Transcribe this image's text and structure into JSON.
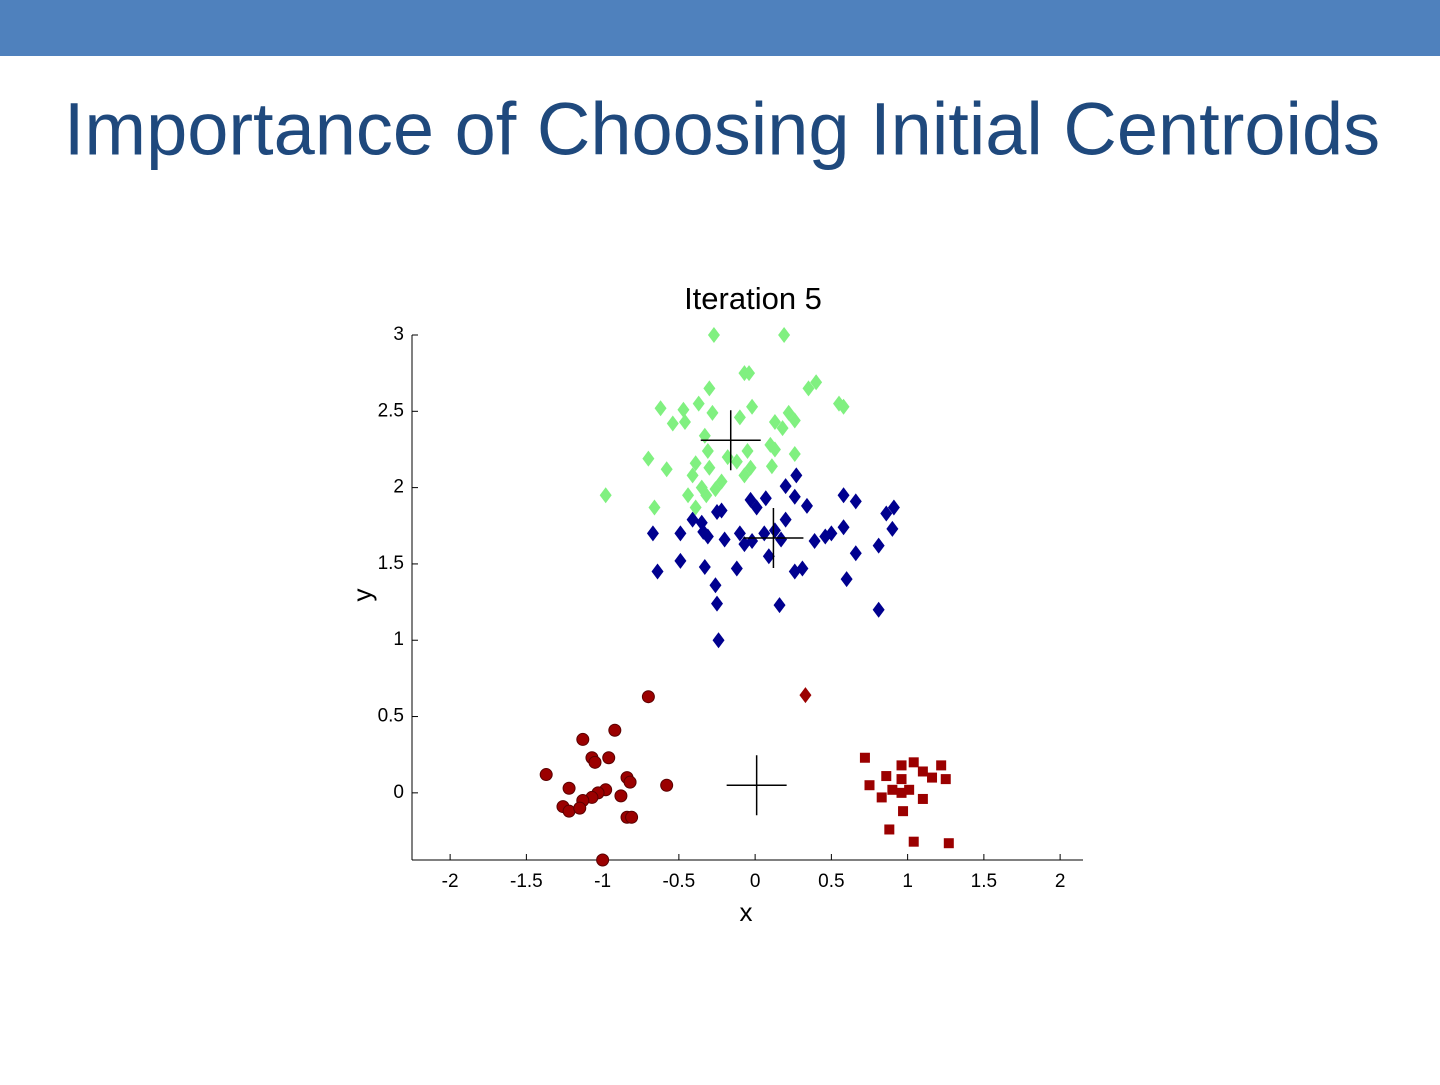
{
  "slide": {
    "title": "Importance of Choosing Initial Centroids"
  },
  "chart_data": {
    "type": "scatter",
    "title": "Iteration 5",
    "x_label": "x",
    "y_label": "y",
    "xlim": [
      -2.25,
      2.15
    ],
    "ylim": [
      -0.44,
      3.0
    ],
    "xticks": [
      -2,
      -1.5,
      -1,
      -0.5,
      0,
      0.5,
      1,
      1.5,
      2
    ],
    "yticks": [
      0,
      0.5,
      1,
      1.5,
      2,
      2.5,
      3
    ],
    "grid": false,
    "series": [
      {
        "color": "#80f080",
        "marker": "diamond",
        "x": [
          -0.27,
          0.19,
          -0.3,
          -0.07,
          -0.04,
          0.4,
          0.35,
          -0.62,
          -0.47,
          -0.37,
          -0.28,
          -0.1,
          -0.02,
          0.22,
          0.26,
          0.13,
          0.18,
          0.55,
          0.58,
          -0.54,
          -0.46,
          -0.33,
          -0.31,
          -0.05,
          0.1,
          0.13,
          0.26,
          -0.7,
          -0.58,
          -0.39,
          -0.3,
          -0.18,
          -0.12,
          -0.03,
          -0.07,
          0.11,
          -0.41,
          -0.35,
          -0.22,
          -0.26,
          -0.44,
          -0.32,
          -0.98,
          -0.66,
          -0.39
        ],
        "y": [
          3.0,
          3.0,
          2.65,
          2.75,
          2.75,
          2.69,
          2.65,
          2.52,
          2.51,
          2.55,
          2.49,
          2.46,
          2.53,
          2.49,
          2.44,
          2.43,
          2.39,
          2.55,
          2.53,
          2.42,
          2.43,
          2.34,
          2.24,
          2.24,
          2.28,
          2.25,
          2.22,
          2.19,
          2.12,
          2.16,
          2.13,
          2.2,
          2.17,
          2.13,
          2.08,
          2.14,
          2.08,
          2.0,
          2.04,
          1.99,
          1.95,
          1.95,
          1.95,
          1.87,
          1.87
        ]
      },
      {
        "color": "#00008f",
        "marker": "diamond",
        "x": [
          0.27,
          0.2,
          -0.03,
          0.07,
          0.26,
          0.01,
          0.34,
          0.58,
          0.66,
          -0.22,
          -0.25,
          -0.41,
          -0.35,
          0.2,
          0.91,
          0.86,
          -0.67,
          -0.49,
          -0.34,
          -0.31,
          -0.2,
          -0.1,
          -0.07,
          -0.02,
          0.06,
          0.13,
          0.17,
          0.39,
          0.46,
          0.5,
          0.58,
          0.9,
          0.81,
          0.66,
          0.09,
          -0.64,
          -0.49,
          -0.33,
          -0.12,
          0.26,
          0.31,
          0.6,
          -0.26,
          -0.25,
          0.16,
          0.81,
          -0.24
        ],
        "y": [
          2.08,
          2.01,
          1.92,
          1.93,
          1.94,
          1.87,
          1.88,
          1.95,
          1.91,
          1.85,
          1.84,
          1.79,
          1.77,
          1.79,
          1.87,
          1.83,
          1.7,
          1.7,
          1.71,
          1.68,
          1.66,
          1.7,
          1.63,
          1.65,
          1.7,
          1.72,
          1.66,
          1.65,
          1.68,
          1.7,
          1.74,
          1.73,
          1.62,
          1.57,
          1.55,
          1.45,
          1.52,
          1.48,
          1.47,
          1.45,
          1.47,
          1.4,
          1.36,
          1.24,
          1.23,
          1.2,
          1.0
        ]
      },
      {
        "color": "#9b0000",
        "marker": "diamond",
        "x": [
          0.33
        ],
        "y": [
          0.64
        ]
      },
      {
        "color": "#9b0000",
        "marker": "circle",
        "x": [
          -0.7,
          -0.92,
          -1.13,
          -1.07,
          -1.05,
          -0.96,
          -1.37,
          -0.84,
          -0.82,
          -0.58,
          -1.22,
          -0.98,
          -1.03,
          -1.07,
          -1.13,
          -0.88,
          -1.26,
          -1.22,
          -1.15,
          -0.84,
          -0.81,
          -1.0
        ],
        "y": [
          0.63,
          0.41,
          0.35,
          0.23,
          0.2,
          0.23,
          0.12,
          0.1,
          0.07,
          0.05,
          0.03,
          0.02,
          0.0,
          -0.03,
          -0.05,
          -0.02,
          -0.09,
          -0.12,
          -0.1,
          -0.16,
          -0.16,
          -0.44
        ]
      },
      {
        "color": "#9b0000",
        "marker": "square",
        "x": [
          0.72,
          1.04,
          0.96,
          1.22,
          0.86,
          1.1,
          0.96,
          1.16,
          1.25,
          0.75,
          0.9,
          1.01,
          0.96,
          0.83,
          1.1,
          0.97,
          0.88,
          1.04,
          1.27
        ],
        "y": [
          0.23,
          0.2,
          0.18,
          0.18,
          0.11,
          0.14,
          0.09,
          0.1,
          0.09,
          0.05,
          0.02,
          0.02,
          0.0,
          -0.03,
          -0.04,
          -0.12,
          -0.24,
          -0.32,
          -0.33
        ]
      },
      {
        "color": "#000000",
        "marker": "plus",
        "x": [
          -0.16,
          0.12,
          0.01
        ],
        "y": [
          2.31,
          1.67,
          0.05
        ]
      }
    ]
  }
}
